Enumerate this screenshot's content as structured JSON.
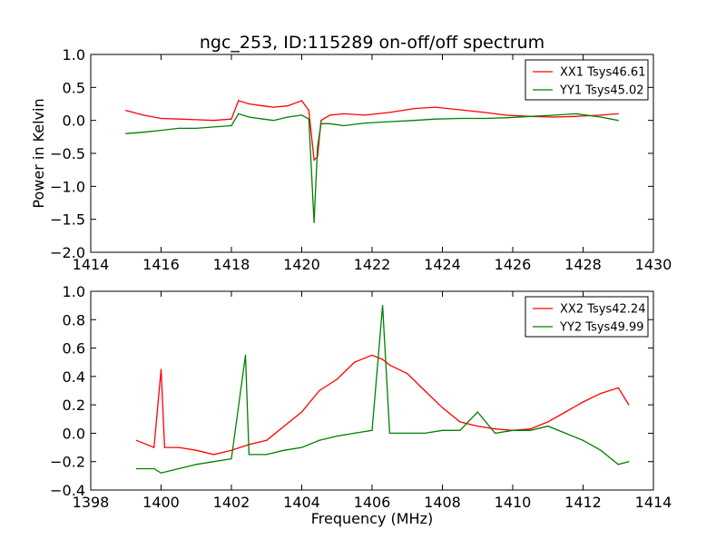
{
  "chart_data": [
    {
      "type": "line",
      "title": "ngc_253, ID:115289 on-off/off spectrum",
      "xlabel": "",
      "ylabel": "Power in Kelvin",
      "xlim": [
        1414,
        1430
      ],
      "ylim": [
        -2.0,
        1.0
      ],
      "xticks": [
        "1414",
        "1416",
        "1418",
        "1420",
        "1422",
        "1424",
        "1426",
        "1428",
        "1430"
      ],
      "yticks": [
        "1.0",
        "0.5",
        "0.0",
        "−0.5",
        "−1.0",
        "−1.5",
        "−2.0"
      ],
      "legend_position": "top-right",
      "series": [
        {
          "name": "XX1 Tsys46.61",
          "color": "#ff0000",
          "x": [
            1415.0,
            1415.5,
            1416.0,
            1416.5,
            1417.0,
            1417.5,
            1418.0,
            1418.2,
            1418.5,
            1418.9,
            1419.2,
            1419.6,
            1420.0,
            1420.2,
            1420.35,
            1420.45,
            1420.55,
            1420.8,
            1421.2,
            1421.8,
            1422.5,
            1423.2,
            1423.8,
            1424.5,
            1425.2,
            1425.8,
            1426.5,
            1427.2,
            1427.8,
            1428.5,
            1429.0
          ],
          "values": [
            0.15,
            0.08,
            0.03,
            0.02,
            0.01,
            0.0,
            0.02,
            0.3,
            0.25,
            0.22,
            0.2,
            0.22,
            0.3,
            0.15,
            -0.6,
            -0.55,
            0.0,
            0.08,
            0.1,
            0.08,
            0.12,
            0.18,
            0.2,
            0.16,
            0.12,
            0.08,
            0.06,
            0.05,
            0.06,
            0.08,
            0.1
          ]
        },
        {
          "name": "YY1 Tsys45.02",
          "color": "#008000",
          "x": [
            1415.0,
            1415.5,
            1416.0,
            1416.5,
            1417.0,
            1417.5,
            1418.0,
            1418.2,
            1418.5,
            1418.9,
            1419.2,
            1419.6,
            1420.0,
            1420.2,
            1420.35,
            1420.45,
            1420.55,
            1420.8,
            1421.2,
            1421.8,
            1422.5,
            1423.2,
            1423.8,
            1424.5,
            1425.2,
            1425.8,
            1426.5,
            1427.2,
            1427.8,
            1428.5,
            1429.0
          ],
          "values": [
            -0.2,
            -0.18,
            -0.15,
            -0.12,
            -0.12,
            -0.1,
            -0.08,
            0.1,
            0.05,
            0.02,
            0.0,
            0.05,
            0.08,
            0.02,
            -1.55,
            -0.4,
            -0.05,
            -0.05,
            -0.08,
            -0.04,
            -0.02,
            0.0,
            0.02,
            0.03,
            0.03,
            0.04,
            0.06,
            0.08,
            0.1,
            0.05,
            0.0
          ]
        }
      ]
    },
    {
      "type": "line",
      "title": "",
      "xlabel": "Frequency (MHz)",
      "ylabel": "",
      "xlim": [
        1398,
        1414
      ],
      "ylim": [
        -0.4,
        1.0
      ],
      "xticks": [
        "1398",
        "1400",
        "1402",
        "1404",
        "1406",
        "1408",
        "1410",
        "1412",
        "1414"
      ],
      "yticks": [
        "1.0",
        "0.8",
        "0.6",
        "0.4",
        "0.2",
        "0.0",
        "−0.2",
        "−0.4"
      ],
      "legend_position": "top-right",
      "series": [
        {
          "name": "XX2 Tsys42.24",
          "color": "#ff0000",
          "x": [
            1399.3,
            1399.8,
            1400.0,
            1400.1,
            1400.5,
            1401.0,
            1401.5,
            1402.0,
            1402.5,
            1403.0,
            1403.5,
            1404.0,
            1404.5,
            1405.0,
            1405.5,
            1406.0,
            1406.3,
            1406.5,
            1407.0,
            1407.5,
            1408.0,
            1408.5,
            1409.0,
            1409.5,
            1410.0,
            1410.5,
            1411.0,
            1411.5,
            1412.0,
            1412.5,
            1413.0,
            1413.3
          ],
          "values": [
            -0.05,
            -0.1,
            0.45,
            -0.1,
            -0.1,
            -0.12,
            -0.15,
            -0.12,
            -0.08,
            -0.05,
            0.05,
            0.15,
            0.3,
            0.38,
            0.5,
            0.55,
            0.52,
            0.48,
            0.42,
            0.3,
            0.18,
            0.08,
            0.05,
            0.03,
            0.02,
            0.03,
            0.08,
            0.15,
            0.22,
            0.28,
            0.32,
            0.2
          ]
        },
        {
          "name": "YY2 Tsys49.99",
          "color": "#008000",
          "x": [
            1399.3,
            1399.8,
            1400.0,
            1400.5,
            1401.0,
            1401.5,
            1402.0,
            1402.4,
            1402.5,
            1403.0,
            1403.5,
            1404.0,
            1404.5,
            1405.0,
            1405.5,
            1406.0,
            1406.3,
            1406.5,
            1407.0,
            1407.5,
            1408.0,
            1408.5,
            1409.0,
            1409.5,
            1410.0,
            1410.5,
            1411.0,
            1411.5,
            1412.0,
            1412.5,
            1413.0,
            1413.3
          ],
          "values": [
            -0.25,
            -0.25,
            -0.28,
            -0.25,
            -0.22,
            -0.2,
            -0.18,
            0.55,
            -0.15,
            -0.15,
            -0.12,
            -0.1,
            -0.05,
            -0.02,
            0.0,
            0.02,
            0.9,
            0.0,
            0.0,
            0.0,
            0.02,
            0.02,
            0.15,
            0.0,
            0.02,
            0.02,
            0.05,
            0.0,
            -0.05,
            -0.12,
            -0.22,
            -0.2
          ]
        }
      ]
    }
  ]
}
